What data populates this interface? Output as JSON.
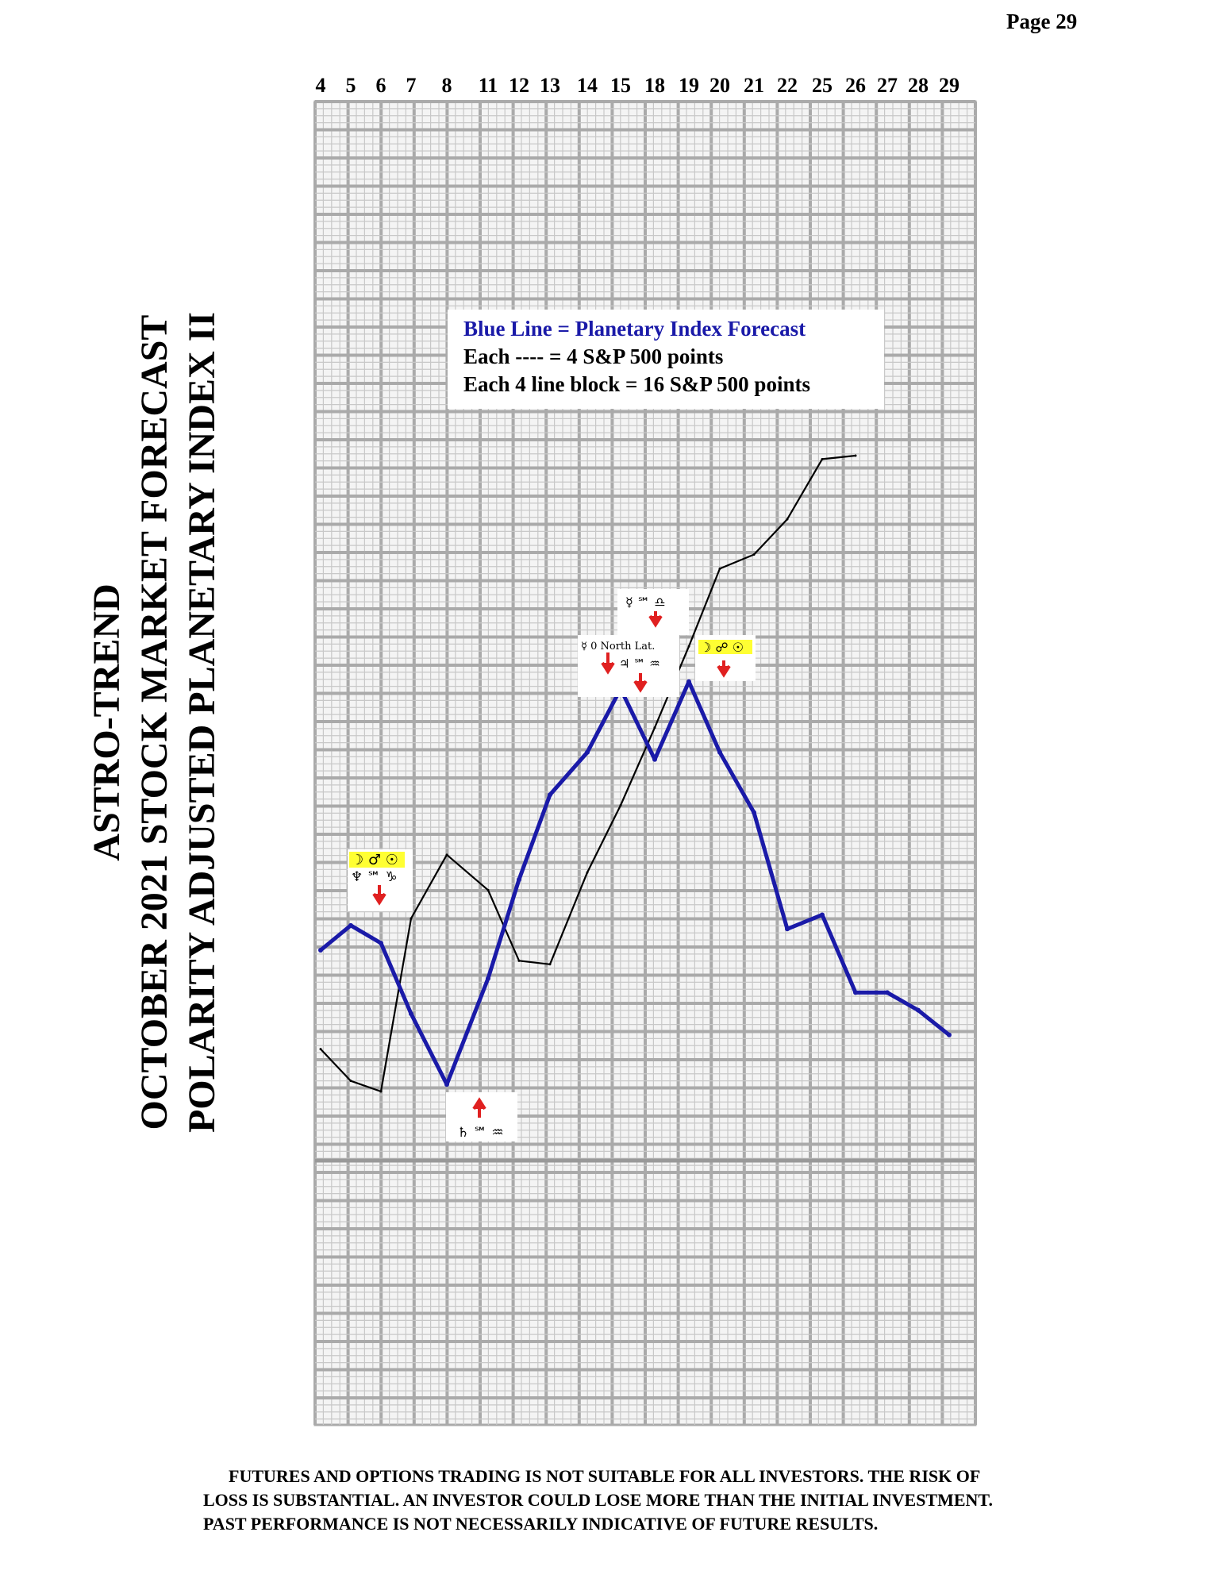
{
  "page": {
    "number_label": "Page  29"
  },
  "title": {
    "line1": "ASTRO-TREND",
    "line2": "OCTOBER 2021 STOCK MARKET FORECAST",
    "line3": "POLARITY ADJUSTED PLANETARY INDEX II"
  },
  "legend": {
    "line1": "Blue Line = Planetary Index Forecast",
    "line2": "Each ---- =   4 S&P 500 points",
    "line3": "Each 4 line block =  16  S&P 500 points"
  },
  "annotations": {
    "a1_top": "☽ ♂ ☉",
    "a1_bottom": "♆ ℠ ♑",
    "a2": "♄ ℠ ♒",
    "a3": "☿ 0 North Lat.",
    "a3_b": "♃ ℠ ♒",
    "a4": "☿ ℠ ♎",
    "a5": "☽ ☍ ☉"
  },
  "disclaimer": {
    "line1": "FUTURES AND OPTIONS TRADING IS NOT SUITABLE FOR ALL INVESTORS.  THE RISK OF",
    "line2": "LOSS IS SUBSTANTIAL.  AN INVESTOR COULD LOSE MORE THAN THE INITIAL INVESTMENT.",
    "line3": "PAST PERFORMANCE IS NOT NECESSARILY INDICATIVE OF FUTURE RESULTS."
  },
  "colors": {
    "forecast": "#1a1aa8",
    "actual": "#000000",
    "grid": "#bdbdbd",
    "arrow": "#e02020",
    "highlight": "#ffff33"
  },
  "chart_data": {
    "type": "line",
    "x_tick_labels": [
      "4",
      "5",
      "6",
      "7",
      "8",
      "11",
      "12",
      "13",
      "14",
      "15",
      "18",
      "19",
      "20",
      "21",
      "22",
      "25",
      "26",
      "27",
      "28",
      "29"
    ],
    "x": [
      "4",
      "5",
      "6",
      "7",
      "8",
      "11",
      "12",
      "13",
      "14",
      "15",
      "18",
      "19",
      "20",
      "21",
      "22",
      "25",
      "26",
      "27",
      "28",
      "29"
    ],
    "series": [
      {
        "name": "Blue Line = Planetary Index Forecast",
        "values": [
          40,
          47,
          42,
          22,
          2,
          32,
          60,
          84,
          96,
          114,
          94,
          116,
          96,
          79,
          46,
          50,
          28,
          28,
          23,
          16
        ]
      },
      {
        "values": [
          12,
          3,
          0,
          49,
          67,
          57,
          37,
          36,
          62,
          81,
          103,
          126,
          148,
          152,
          162,
          179,
          180,
          null,
          null,
          null
        ]
      }
    ],
    "grid": true
  }
}
